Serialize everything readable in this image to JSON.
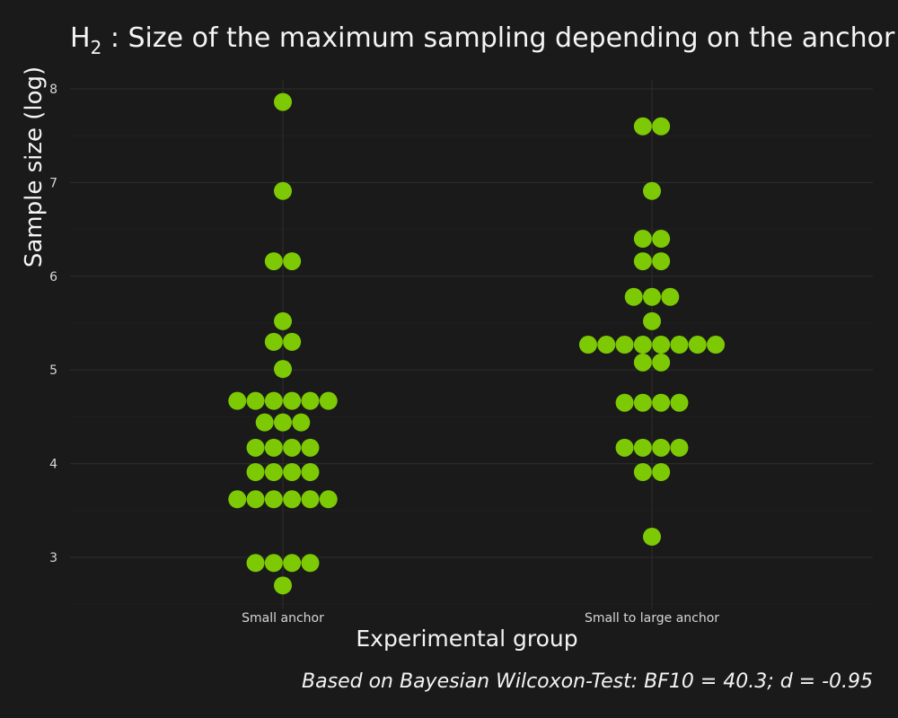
{
  "chart_data": {
    "type": "scatter",
    "subtype": "beeswarm dot plot",
    "title_main": "H",
    "title_sub": "2",
    "title_rest": " : Size of the maximum sampling depending on the anchor",
    "xlabel": "Experimental group",
    "ylabel": "Sample size (log)",
    "caption": "Based on Bayesian Wilcoxon-Test: BF10 = 40.3; d = -0.95",
    "categories": [
      "Small anchor",
      "Small to large anchor"
    ],
    "ylim": [
      2.45,
      8.1
    ],
    "yticks": [
      3,
      4,
      5,
      6,
      7,
      8
    ],
    "grid": true,
    "point_color": "#7dc904",
    "background": "#1a1a1a",
    "groups": [
      {
        "name": "Small anchor",
        "values": [
          7.86,
          6.91,
          6.16,
          6.16,
          5.52,
          5.3,
          5.3,
          5.01,
          4.67,
          4.67,
          4.67,
          4.67,
          4.67,
          4.67,
          4.44,
          4.44,
          4.44,
          4.17,
          4.17,
          4.17,
          4.17,
          3.91,
          3.91,
          3.91,
          3.91,
          3.62,
          3.62,
          3.62,
          3.62,
          3.62,
          3.62,
          2.94,
          2.94,
          2.94,
          2.94,
          2.7
        ]
      },
      {
        "name": "Small to large anchor",
        "values": [
          7.6,
          7.6,
          6.91,
          6.4,
          6.4,
          6.16,
          6.16,
          5.78,
          5.78,
          5.78,
          5.52,
          5.27,
          5.27,
          5.27,
          5.27,
          5.27,
          5.27,
          5.27,
          5.27,
          5.08,
          5.08,
          4.65,
          4.65,
          4.65,
          4.65,
          4.17,
          4.17,
          4.17,
          4.17,
          3.91,
          3.91,
          3.22
        ]
      }
    ]
  }
}
